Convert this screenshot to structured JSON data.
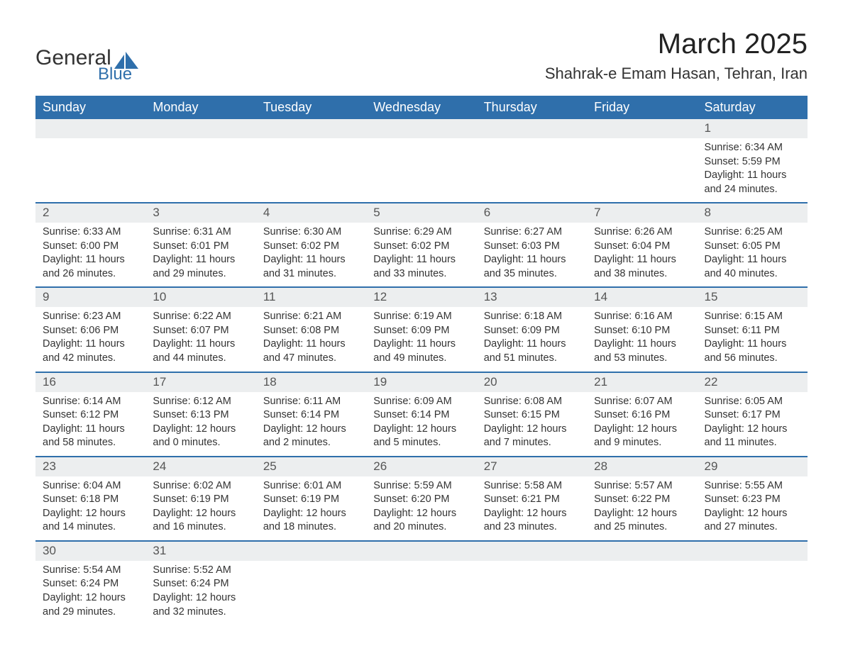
{
  "logo": {
    "text_general": "General",
    "text_blue": "Blue",
    "icon_color": "#2f6fab"
  },
  "title": "March 2025",
  "location": "Shahrak-e Emam Hasan, Tehran, Iran",
  "colors": {
    "header_bg": "#2f6fab",
    "header_text": "#ffffff",
    "daynum_bg": "#eceeef",
    "row_border": "#2f6fab",
    "body_text": "#333333"
  },
  "typography": {
    "title_fontsize": 40,
    "location_fontsize": 22,
    "dayheader_fontsize": 18,
    "daynum_fontsize": 17,
    "detail_fontsize": 14.5
  },
  "day_headers": [
    "Sunday",
    "Monday",
    "Tuesday",
    "Wednesday",
    "Thursday",
    "Friday",
    "Saturday"
  ],
  "weeks": [
    [
      null,
      null,
      null,
      null,
      null,
      null,
      {
        "n": "1",
        "sr": "Sunrise: 6:34 AM",
        "ss": "Sunset: 5:59 PM",
        "dl1": "Daylight: 11 hours",
        "dl2": "and 24 minutes."
      }
    ],
    [
      {
        "n": "2",
        "sr": "Sunrise: 6:33 AM",
        "ss": "Sunset: 6:00 PM",
        "dl1": "Daylight: 11 hours",
        "dl2": "and 26 minutes."
      },
      {
        "n": "3",
        "sr": "Sunrise: 6:31 AM",
        "ss": "Sunset: 6:01 PM",
        "dl1": "Daylight: 11 hours",
        "dl2": "and 29 minutes."
      },
      {
        "n": "4",
        "sr": "Sunrise: 6:30 AM",
        "ss": "Sunset: 6:02 PM",
        "dl1": "Daylight: 11 hours",
        "dl2": "and 31 minutes."
      },
      {
        "n": "5",
        "sr": "Sunrise: 6:29 AM",
        "ss": "Sunset: 6:02 PM",
        "dl1": "Daylight: 11 hours",
        "dl2": "and 33 minutes."
      },
      {
        "n": "6",
        "sr": "Sunrise: 6:27 AM",
        "ss": "Sunset: 6:03 PM",
        "dl1": "Daylight: 11 hours",
        "dl2": "and 35 minutes."
      },
      {
        "n": "7",
        "sr": "Sunrise: 6:26 AM",
        "ss": "Sunset: 6:04 PM",
        "dl1": "Daylight: 11 hours",
        "dl2": "and 38 minutes."
      },
      {
        "n": "8",
        "sr": "Sunrise: 6:25 AM",
        "ss": "Sunset: 6:05 PM",
        "dl1": "Daylight: 11 hours",
        "dl2": "and 40 minutes."
      }
    ],
    [
      {
        "n": "9",
        "sr": "Sunrise: 6:23 AM",
        "ss": "Sunset: 6:06 PM",
        "dl1": "Daylight: 11 hours",
        "dl2": "and 42 minutes."
      },
      {
        "n": "10",
        "sr": "Sunrise: 6:22 AM",
        "ss": "Sunset: 6:07 PM",
        "dl1": "Daylight: 11 hours",
        "dl2": "and 44 minutes."
      },
      {
        "n": "11",
        "sr": "Sunrise: 6:21 AM",
        "ss": "Sunset: 6:08 PM",
        "dl1": "Daylight: 11 hours",
        "dl2": "and 47 minutes."
      },
      {
        "n": "12",
        "sr": "Sunrise: 6:19 AM",
        "ss": "Sunset: 6:09 PM",
        "dl1": "Daylight: 11 hours",
        "dl2": "and 49 minutes."
      },
      {
        "n": "13",
        "sr": "Sunrise: 6:18 AM",
        "ss": "Sunset: 6:09 PM",
        "dl1": "Daylight: 11 hours",
        "dl2": "and 51 minutes."
      },
      {
        "n": "14",
        "sr": "Sunrise: 6:16 AM",
        "ss": "Sunset: 6:10 PM",
        "dl1": "Daylight: 11 hours",
        "dl2": "and 53 minutes."
      },
      {
        "n": "15",
        "sr": "Sunrise: 6:15 AM",
        "ss": "Sunset: 6:11 PM",
        "dl1": "Daylight: 11 hours",
        "dl2": "and 56 minutes."
      }
    ],
    [
      {
        "n": "16",
        "sr": "Sunrise: 6:14 AM",
        "ss": "Sunset: 6:12 PM",
        "dl1": "Daylight: 11 hours",
        "dl2": "and 58 minutes."
      },
      {
        "n": "17",
        "sr": "Sunrise: 6:12 AM",
        "ss": "Sunset: 6:13 PM",
        "dl1": "Daylight: 12 hours",
        "dl2": "and 0 minutes."
      },
      {
        "n": "18",
        "sr": "Sunrise: 6:11 AM",
        "ss": "Sunset: 6:14 PM",
        "dl1": "Daylight: 12 hours",
        "dl2": "and 2 minutes."
      },
      {
        "n": "19",
        "sr": "Sunrise: 6:09 AM",
        "ss": "Sunset: 6:14 PM",
        "dl1": "Daylight: 12 hours",
        "dl2": "and 5 minutes."
      },
      {
        "n": "20",
        "sr": "Sunrise: 6:08 AM",
        "ss": "Sunset: 6:15 PM",
        "dl1": "Daylight: 12 hours",
        "dl2": "and 7 minutes."
      },
      {
        "n": "21",
        "sr": "Sunrise: 6:07 AM",
        "ss": "Sunset: 6:16 PM",
        "dl1": "Daylight: 12 hours",
        "dl2": "and 9 minutes."
      },
      {
        "n": "22",
        "sr": "Sunrise: 6:05 AM",
        "ss": "Sunset: 6:17 PM",
        "dl1": "Daylight: 12 hours",
        "dl2": "and 11 minutes."
      }
    ],
    [
      {
        "n": "23",
        "sr": "Sunrise: 6:04 AM",
        "ss": "Sunset: 6:18 PM",
        "dl1": "Daylight: 12 hours",
        "dl2": "and 14 minutes."
      },
      {
        "n": "24",
        "sr": "Sunrise: 6:02 AM",
        "ss": "Sunset: 6:19 PM",
        "dl1": "Daylight: 12 hours",
        "dl2": "and 16 minutes."
      },
      {
        "n": "25",
        "sr": "Sunrise: 6:01 AM",
        "ss": "Sunset: 6:19 PM",
        "dl1": "Daylight: 12 hours",
        "dl2": "and 18 minutes."
      },
      {
        "n": "26",
        "sr": "Sunrise: 5:59 AM",
        "ss": "Sunset: 6:20 PM",
        "dl1": "Daylight: 12 hours",
        "dl2": "and 20 minutes."
      },
      {
        "n": "27",
        "sr": "Sunrise: 5:58 AM",
        "ss": "Sunset: 6:21 PM",
        "dl1": "Daylight: 12 hours",
        "dl2": "and 23 minutes."
      },
      {
        "n": "28",
        "sr": "Sunrise: 5:57 AM",
        "ss": "Sunset: 6:22 PM",
        "dl1": "Daylight: 12 hours",
        "dl2": "and 25 minutes."
      },
      {
        "n": "29",
        "sr": "Sunrise: 5:55 AM",
        "ss": "Sunset: 6:23 PM",
        "dl1": "Daylight: 12 hours",
        "dl2": "and 27 minutes."
      }
    ],
    [
      {
        "n": "30",
        "sr": "Sunrise: 5:54 AM",
        "ss": "Sunset: 6:24 PM",
        "dl1": "Daylight: 12 hours",
        "dl2": "and 29 minutes."
      },
      {
        "n": "31",
        "sr": "Sunrise: 5:52 AM",
        "ss": "Sunset: 6:24 PM",
        "dl1": "Daylight: 12 hours",
        "dl2": "and 32 minutes."
      },
      null,
      null,
      null,
      null,
      null
    ]
  ]
}
